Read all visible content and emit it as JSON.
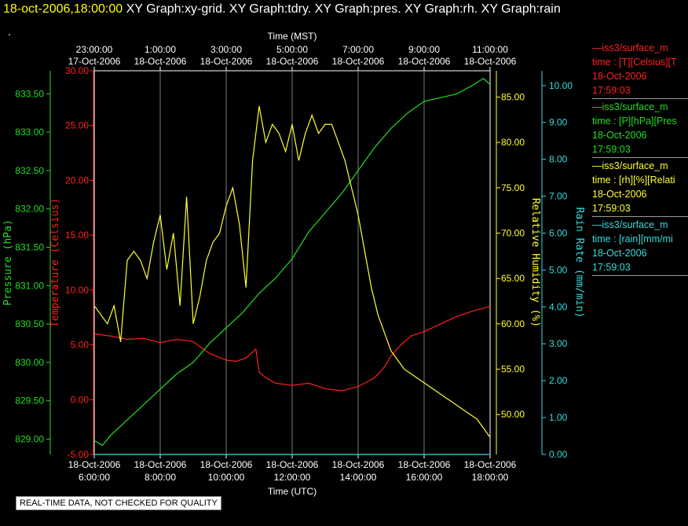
{
  "header": {
    "timestamp": "18-oct-2006,18:00:00",
    "graphs": "XY Graph:xy-grid.  XY Graph:tdry.  XY Graph:pres.  XY Graph:rh.  XY Graph:rain"
  },
  "status_dot": ".",
  "badge": "REAL-TIME DATA, NOT CHECKED FOR QUALITY",
  "legend": [
    {
      "line1": "—iss3/surface_m",
      "line2": "time : [T][Celsius][T",
      "date": "18-Oct-2006",
      "time": "17:59:03",
      "color": "#ff2020"
    },
    {
      "line1": "—iss3/surface_m",
      "line2": "time : [P][hPa][Pres",
      "date": "18-Oct-2006",
      "time": "17:59:03",
      "color": "#22dd22"
    },
    {
      "line1": "—iss3/surface_m",
      "line2": "time : [rh][%][Relati",
      "date": "18-Oct-2006",
      "time": "17:59:03",
      "color": "#ffff33"
    },
    {
      "line1": "—iss3/surface_m",
      "line2": "time : [rain][mm/mi",
      "date": "18-Oct-2006",
      "time": "17:59:03",
      "color": "#33dddd"
    }
  ],
  "chart_data": {
    "type": "line",
    "top_axis": {
      "label": "Time (MST)",
      "ticks": [
        {
          "time": "23:00:00",
          "date": "17-Oct-2006"
        },
        {
          "time": "1:00:00",
          "date": "18-Oct-2006"
        },
        {
          "time": "3:00:00",
          "date": "18-Oct-2006"
        },
        {
          "time": "5:00:00",
          "date": "18-Oct-2006"
        },
        {
          "time": "7:00:00",
          "date": "18-Oct-2006"
        },
        {
          "time": "9:00:00",
          "date": "18-Oct-2006"
        },
        {
          "time": "11:00:00",
          "date": "18-Oct-2006"
        }
      ]
    },
    "bottom_axis": {
      "label": "Time (UTC)",
      "ticks": [
        {
          "date": "18-Oct-2006",
          "time": "6:00:00"
        },
        {
          "date": "18-Oct-2006",
          "time": "8:00:00"
        },
        {
          "date": "18-Oct-2006",
          "time": "10:00:00"
        },
        {
          "date": "18-Oct-2006",
          "time": "12:00:00"
        },
        {
          "date": "18-Oct-2006",
          "time": "14:00:00"
        },
        {
          "date": "18-Oct-2006",
          "time": "16:00:00"
        },
        {
          "date": "18-Oct-2006",
          "time": "18:00:00"
        }
      ]
    },
    "x_hours_utc": [
      6,
      18
    ],
    "grid": true,
    "axes": {
      "pressure": {
        "label": "Pressure (hPa)",
        "ylim": [
          828.8,
          833.8
        ],
        "ticks": [
          "829.00",
          "829.50",
          "830.00",
          "830.50",
          "831.00",
          "831.50",
          "832.00",
          "832.50",
          "833.00",
          "833.50"
        ],
        "color": "#22dd22"
      },
      "temperature": {
        "label": "Temperature (Celsius)",
        "ylim": [
          -5,
          30
        ],
        "ticks": [
          "-5.00",
          "0.00",
          "5.00",
          "10.00",
          "15.00",
          "20.00",
          "25.00",
          "30.00"
        ],
        "color": "#ff2020"
      },
      "rh": {
        "label": "Relative Humidity (%)",
        "ylim": [
          45.6,
          87.9
        ],
        "ticks": [
          "50.00",
          "55.00",
          "60.00",
          "65.00",
          "70.00",
          "75.00",
          "80.00",
          "85.00"
        ],
        "color": "#ffff33"
      },
      "rain": {
        "label": "Rain Rate (mm/min)",
        "ylim": [
          0,
          10.4
        ],
        "ticks": [
          "0.00",
          "1.00",
          "2.00",
          "3.00",
          "4.00",
          "5.00",
          "6.00",
          "7.00",
          "8.00",
          "9.00",
          "10.00"
        ],
        "color": "#33dddd"
      }
    },
    "series": [
      {
        "name": "iss3/surface_m T",
        "axis": "temperature",
        "color": "#ff2020",
        "x": [
          6.0,
          6.5,
          7.0,
          7.5,
          8.0,
          8.5,
          9.0,
          9.5,
          10.0,
          10.3,
          10.6,
          10.9,
          11.0,
          11.2,
          11.5,
          12.0,
          12.5,
          13.0,
          13.5,
          14.0,
          14.5,
          14.8,
          15.0,
          15.3,
          15.6,
          16.0,
          16.5,
          17.0,
          17.5,
          18.0
        ],
        "y": [
          6.0,
          5.8,
          5.5,
          5.6,
          5.2,
          5.5,
          5.3,
          4.2,
          3.6,
          3.5,
          3.8,
          4.6,
          2.5,
          2.0,
          1.5,
          1.3,
          1.5,
          1.0,
          0.8,
          1.2,
          2.0,
          3.0,
          4.0,
          5.0,
          5.8,
          6.2,
          6.9,
          7.6,
          8.1,
          8.5
        ]
      },
      {
        "name": "iss3/surface_m P",
        "axis": "pressure",
        "color": "#22dd22",
        "x": [
          6.0,
          6.25,
          6.5,
          7.0,
          7.5,
          8.0,
          8.5,
          9.0,
          9.5,
          10.0,
          10.5,
          11.0,
          11.5,
          12.0,
          12.5,
          13.0,
          13.5,
          14.0,
          14.5,
          15.0,
          15.5,
          16.0,
          16.5,
          17.0,
          17.5,
          17.8,
          18.0
        ],
        "y": [
          828.98,
          828.92,
          829.05,
          829.25,
          829.45,
          829.65,
          829.85,
          830.0,
          830.25,
          830.45,
          830.65,
          830.9,
          831.1,
          831.35,
          831.7,
          831.95,
          832.2,
          832.5,
          832.8,
          833.05,
          833.25,
          833.4,
          833.45,
          833.5,
          833.62,
          833.7,
          833.62
        ]
      },
      {
        "name": "iss3/surface_m rh",
        "axis": "rh",
        "color": "#ffff33",
        "x": [
          6.0,
          6.2,
          6.4,
          6.6,
          6.8,
          7.0,
          7.2,
          7.4,
          7.6,
          7.8,
          8.0,
          8.2,
          8.4,
          8.6,
          8.8,
          9.0,
          9.2,
          9.4,
          9.6,
          9.8,
          10.0,
          10.2,
          10.4,
          10.6,
          10.8,
          11.0,
          11.2,
          11.4,
          11.6,
          11.8,
          12.0,
          12.2,
          12.4,
          12.6,
          12.8,
          13.0,
          13.2,
          13.4,
          13.6,
          13.8,
          14.0,
          14.2,
          14.4,
          14.6,
          14.8,
          15.0,
          15.2,
          15.4,
          15.6,
          15.8,
          16.0,
          16.2,
          16.4,
          16.6,
          16.8,
          17.0,
          17.2,
          17.4,
          17.6,
          17.8,
          18.0
        ],
        "y": [
          62.0,
          61.0,
          60.0,
          62.0,
          58.0,
          67.0,
          68.0,
          67.0,
          65.0,
          69.0,
          72.0,
          66.0,
          70.0,
          62.0,
          74.0,
          60.0,
          63.0,
          67.0,
          69.0,
          70.0,
          73.0,
          75.0,
          71.0,
          64.0,
          78.0,
          84.0,
          80.0,
          82.0,
          81.0,
          79.0,
          82.0,
          78.0,
          81.0,
          83.0,
          81.0,
          82.0,
          82.0,
          80.0,
          78.0,
          75.0,
          72.0,
          68.0,
          64.0,
          61.0,
          59.0,
          57.0,
          56.0,
          55.0,
          54.5,
          54.0,
          53.5,
          53.0,
          52.5,
          52.0,
          51.5,
          51.0,
          50.5,
          50.0,
          49.5,
          48.5,
          47.5
        ]
      },
      {
        "name": "iss3/surface_m rain",
        "axis": "rain",
        "color": "#33dddd",
        "x": [
          6.0,
          18.0
        ],
        "y": [
          0.0,
          0.0
        ]
      }
    ]
  }
}
